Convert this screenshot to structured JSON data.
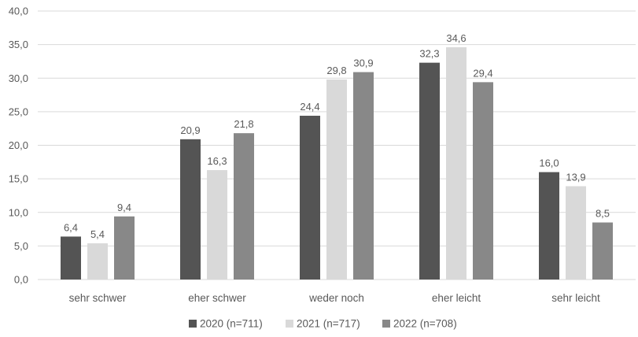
{
  "chart_data": {
    "type": "bar",
    "categories": [
      "sehr schwer",
      "eher schwer",
      "weder noch",
      "eher leicht",
      "sehr leicht"
    ],
    "series": [
      {
        "name": "2020 (n=711)",
        "values": [
          6.4,
          20.9,
          24.4,
          32.3,
          16.0
        ],
        "labels": [
          "6,4",
          "20,9",
          "24,4",
          "32,3",
          "16,0"
        ],
        "color": "#545454"
      },
      {
        "name": "2021 (n=717)",
        "values": [
          5.4,
          16.3,
          29.8,
          34.6,
          13.9
        ],
        "labels": [
          "5,4",
          "16,3",
          "29,8",
          "34,6",
          "13,9"
        ],
        "color": "#d9d9d9"
      },
      {
        "name": "2022 (n=708)",
        "values": [
          9.4,
          21.8,
          30.9,
          29.4,
          8.5
        ],
        "labels": [
          "9,4",
          "21,8",
          "30,9",
          "29,4",
          "8,5"
        ],
        "color": "#888888"
      }
    ],
    "ylim": [
      0,
      40
    ],
    "yticks": [
      "0,0",
      "5,0",
      "10,0",
      "15,0",
      "20,0",
      "25,0",
      "30,0",
      "35,0",
      "40,0"
    ],
    "grid": true,
    "legend_position": "bottom",
    "title": "",
    "xlabel": "",
    "ylabel": ""
  }
}
